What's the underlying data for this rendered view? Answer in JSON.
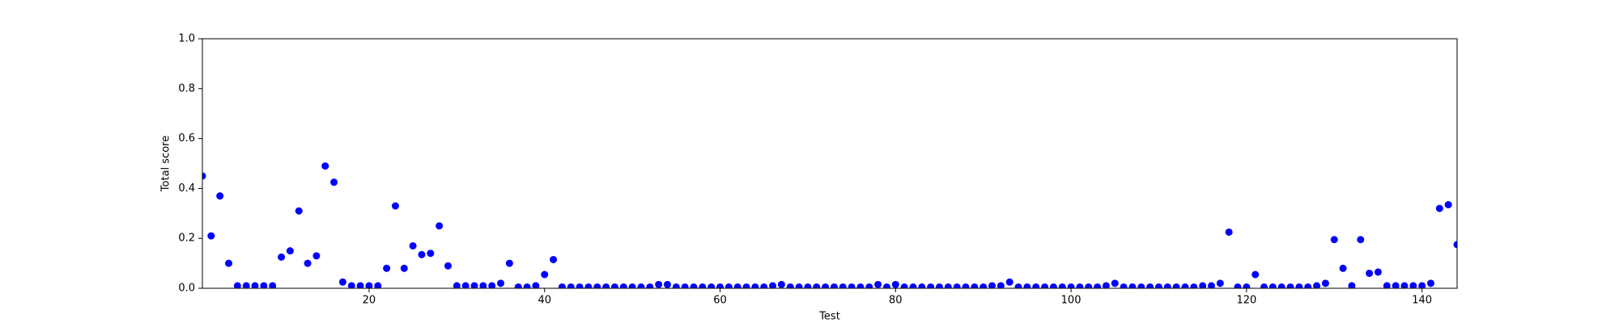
{
  "chart_data": {
    "type": "scatter",
    "xlabel": "Test",
    "ylabel": "Total score",
    "color": "#0000ff",
    "grid": false,
    "xlim": [
      1,
      144
    ],
    "ylim": [
      0,
      1
    ],
    "xticks": [
      20,
      40,
      60,
      80,
      100,
      120,
      140
    ],
    "yticks": [
      {
        "value": 0,
        "label": "0.0"
      },
      0.2,
      0.4,
      0.6,
      0.8,
      {
        "value": 1,
        "label": "1.0"
      }
    ],
    "x": [
      1,
      2,
      3,
      4,
      5,
      6,
      7,
      8,
      9,
      10,
      11,
      12,
      13,
      14,
      15,
      16,
      17,
      18,
      19,
      20,
      21,
      22,
      23,
      24,
      25,
      26,
      27,
      28,
      29,
      30,
      31,
      32,
      33,
      34,
      35,
      36,
      37,
      38,
      39,
      40,
      41,
      42,
      43,
      44,
      45,
      46,
      47,
      48,
      49,
      50,
      51,
      52,
      53,
      54,
      55,
      56,
      57,
      58,
      59,
      60,
      61,
      62,
      63,
      64,
      65,
      66,
      67,
      68,
      69,
      70,
      71,
      72,
      73,
      74,
      75,
      76,
      77,
      78,
      79,
      80,
      81,
      82,
      83,
      84,
      85,
      86,
      87,
      88,
      89,
      90,
      91,
      92,
      93,
      94,
      95,
      96,
      97,
      98,
      99,
      100,
      101,
      102,
      103,
      104,
      105,
      106,
      107,
      108,
      109,
      110,
      111,
      112,
      113,
      114,
      115,
      116,
      117,
      118,
      119,
      120,
      121,
      122,
      123,
      124,
      125,
      126,
      127,
      128,
      129,
      130,
      131,
      132,
      133,
      134,
      135,
      136,
      137,
      138,
      139,
      140,
      141,
      142,
      143,
      144
    ],
    "values": [
      0.45,
      0.21,
      0.37,
      0.1,
      0.01,
      0.01,
      0.01,
      0.01,
      0.01,
      0.125,
      0.15,
      0.31,
      0.1,
      0.13,
      0.49,
      0.425,
      0.025,
      0.01,
      0.01,
      0.01,
      0.01,
      0.08,
      0.33,
      0.08,
      0.17,
      0.135,
      0.14,
      0.25,
      0.09,
      0.01,
      0.01,
      0.01,
      0.01,
      0.01,
      0.02,
      0.1,
      0.005,
      0.005,
      0.01,
      0.055,
      0.115,
      0.005,
      0.005,
      0.005,
      0.005,
      0.005,
      0.005,
      0.005,
      0.005,
      0.005,
      0.005,
      0.005,
      0.015,
      0.015,
      0.005,
      0.005,
      0.005,
      0.005,
      0.005,
      0.005,
      0.005,
      0.005,
      0.005,
      0.005,
      0.005,
      0.01,
      0.015,
      0.005,
      0.005,
      0.005,
      0.005,
      0.005,
      0.005,
      0.005,
      0.005,
      0.005,
      0.005,
      0.015,
      0.005,
      0.015,
      0.005,
      0.005,
      0.005,
      0.005,
      0.005,
      0.005,
      0.005,
      0.005,
      0.005,
      0.005,
      0.01,
      0.01,
      0.025,
      0.005,
      0.005,
      0.005,
      0.005,
      0.005,
      0.005,
      0.005,
      0.005,
      0.005,
      0.005,
      0.01,
      0.02,
      0.005,
      0.005,
      0.005,
      0.005,
      0.005,
      0.005,
      0.005,
      0.005,
      0.005,
      0.01,
      0.01,
      0.02,
      0.225,
      0.005,
      0.005,
      0.055,
      0.005,
      0.005,
      0.005,
      0.005,
      0.005,
      0.005,
      0.01,
      0.02,
      0.195,
      0.08,
      0.01,
      0.195,
      0.06,
      0.065,
      0.01,
      0.01,
      0.01,
      0.01,
      0.01,
      0.02,
      0.32,
      0.335,
      0.175
    ]
  }
}
